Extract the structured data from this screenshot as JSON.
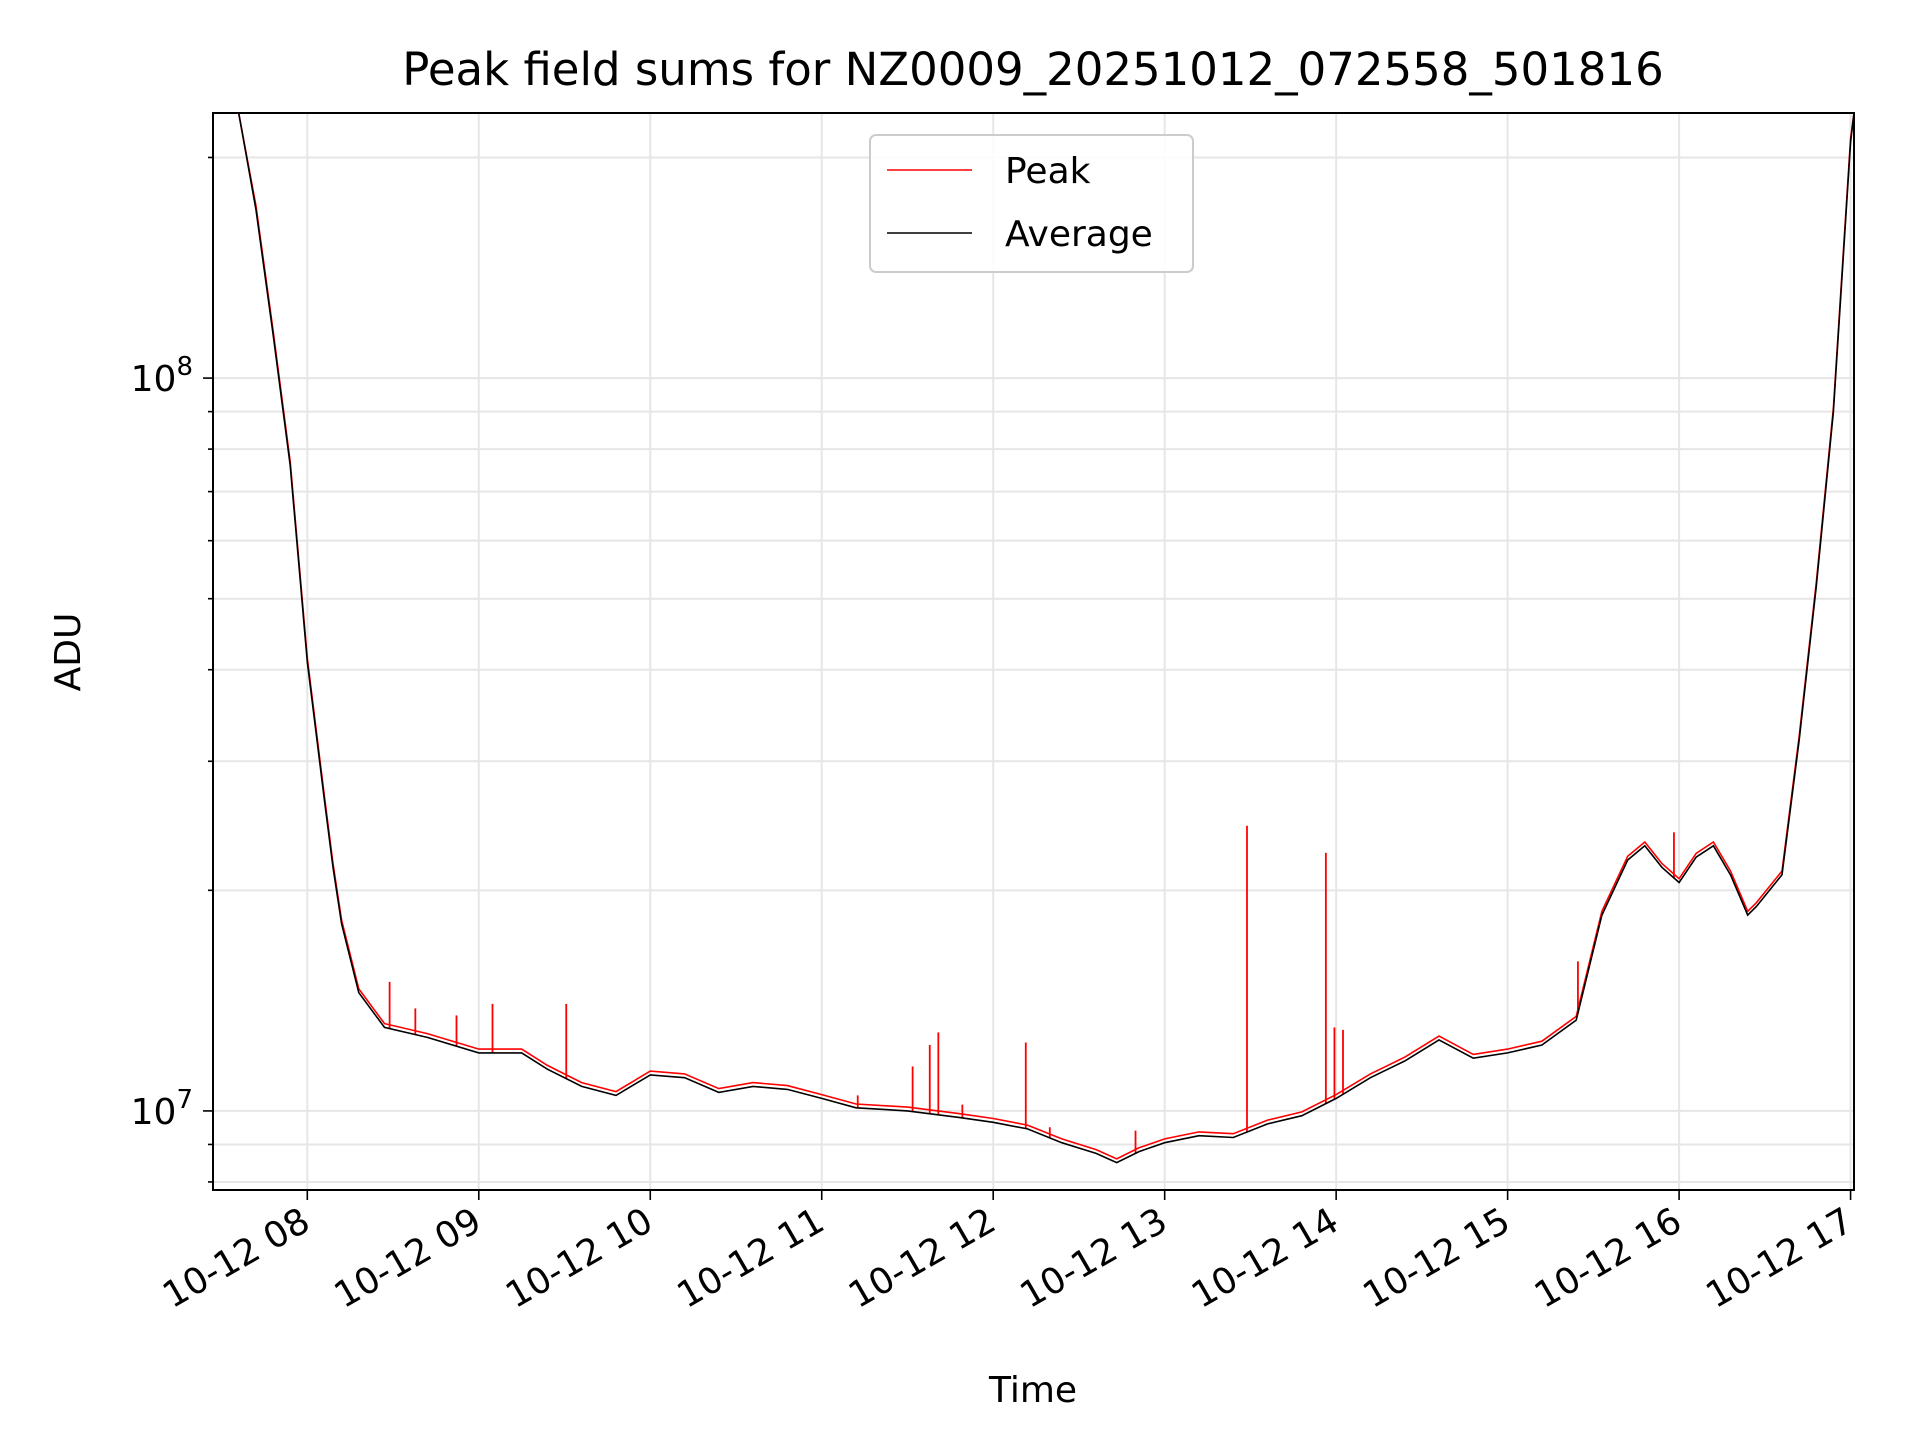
{
  "chart_data": {
    "type": "line",
    "title": "Peak field sums for NZ0009_20251012_072558_501816",
    "xlabel": "Time",
    "ylabel": "ADU",
    "x_unit": "hours since 10-12 00:00",
    "xlim": [
      7.45,
      17.02
    ],
    "ylim": [
      7800000.0,
      230000000.0
    ],
    "yscale": "log",
    "grid": true,
    "legend_position": "upper center",
    "x_ticks": [
      {
        "value": 8,
        "label": "10-12 08"
      },
      {
        "value": 9,
        "label": "10-12 09"
      },
      {
        "value": 10,
        "label": "10-12 10"
      },
      {
        "value": 11,
        "label": "10-12 11"
      },
      {
        "value": 12,
        "label": "10-12 12"
      },
      {
        "value": 13,
        "label": "10-12 13"
      },
      {
        "value": 14,
        "label": "10-12 14"
      },
      {
        "value": 15,
        "label": "10-12 15"
      },
      {
        "value": 16,
        "label": "10-12 16"
      },
      {
        "value": 17,
        "label": "10-12 17"
      }
    ],
    "y_ticks": [
      {
        "value": 10000000,
        "base": "10",
        "exp": "7"
      },
      {
        "value": 100000000,
        "base": "10",
        "exp": "8"
      }
    ],
    "series": [
      {
        "name": "Average",
        "color": "#000000",
        "x": [
          7.45,
          7.6,
          7.7,
          7.8,
          7.9,
          7.95,
          8.0,
          8.1,
          8.15,
          8.2,
          8.3,
          8.45,
          8.7,
          9.0,
          9.25,
          9.4,
          9.6,
          9.8,
          10.0,
          10.2,
          10.4,
          10.6,
          10.8,
          11.0,
          11.2,
          11.5,
          11.8,
          12.0,
          12.2,
          12.4,
          12.6,
          12.72,
          12.85,
          13.0,
          13.2,
          13.4,
          13.6,
          13.8,
          14.0,
          14.2,
          14.4,
          14.6,
          14.8,
          15.0,
          15.2,
          15.4,
          15.55,
          15.7,
          15.8,
          15.9,
          16.0,
          16.1,
          16.2,
          16.3,
          16.4,
          16.45,
          16.6,
          16.7,
          16.8,
          16.9,
          17.0,
          17.02
        ],
        "y": [
          230000000.0,
          230000000.0,
          170000000.0,
          115000000.0,
          76000000.0,
          56000000.0,
          41000000.0,
          26500000.0,
          21500000.0,
          18000000.0,
          14500000.0,
          13000000.0,
          12600000.0,
          12000000.0,
          12000000.0,
          11400000.0,
          10800000.0,
          10500000.0,
          11200000.0,
          11100000.0,
          10600000.0,
          10800000.0,
          10700000.0,
          10400000.0,
          10100000.0,
          10000000.0,
          9800000.0,
          9650000.0,
          9450000.0,
          9050000.0,
          8750000.0,
          8500000.0,
          8800000.0,
          9050000.0,
          9250000.0,
          9200000.0,
          9600000.0,
          9850000.0,
          10400000.0,
          11100000.0,
          11700000.0,
          12500000.0,
          11800000.0,
          12000000.0,
          12300000.0,
          13300000.0,
          18500000.0,
          22000000.0,
          23000000.0,
          21500000.0,
          20500000.0,
          22200000.0,
          23000000.0,
          21000000.0,
          18500000.0,
          19000000.0,
          21000000.0,
          32000000.0,
          52000000.0,
          90000000.0,
          210000000.0,
          230000000.0
        ]
      },
      {
        "name": "Peak",
        "color": "#ff0000",
        "spikes": [
          {
            "x": 8.48,
            "y": 15000000.0
          },
          {
            "x": 8.63,
            "y": 13800000.0
          },
          {
            "x": 8.87,
            "y": 13500000.0
          },
          {
            "x": 9.08,
            "y": 14000000.0
          },
          {
            "x": 9.51,
            "y": 14000000.0
          },
          {
            "x": 11.21,
            "y": 10500000.0
          },
          {
            "x": 11.53,
            "y": 11500000.0
          },
          {
            "x": 11.63,
            "y": 12300000.0
          },
          {
            "x": 11.68,
            "y": 12800000.0
          },
          {
            "x": 11.82,
            "y": 10200000.0
          },
          {
            "x": 12.19,
            "y": 12400000.0
          },
          {
            "x": 12.33,
            "y": 9500000.0
          },
          {
            "x": 12.83,
            "y": 9400000.0
          },
          {
            "x": 13.48,
            "y": 24500000.0
          },
          {
            "x": 13.94,
            "y": 22500000.0
          },
          {
            "x": 13.99,
            "y": 13000000.0
          },
          {
            "x": 14.04,
            "y": 12900000.0
          },
          {
            "x": 15.41,
            "y": 16000000.0
          },
          {
            "x": 15.97,
            "y": 24000000.0
          }
        ]
      }
    ]
  }
}
